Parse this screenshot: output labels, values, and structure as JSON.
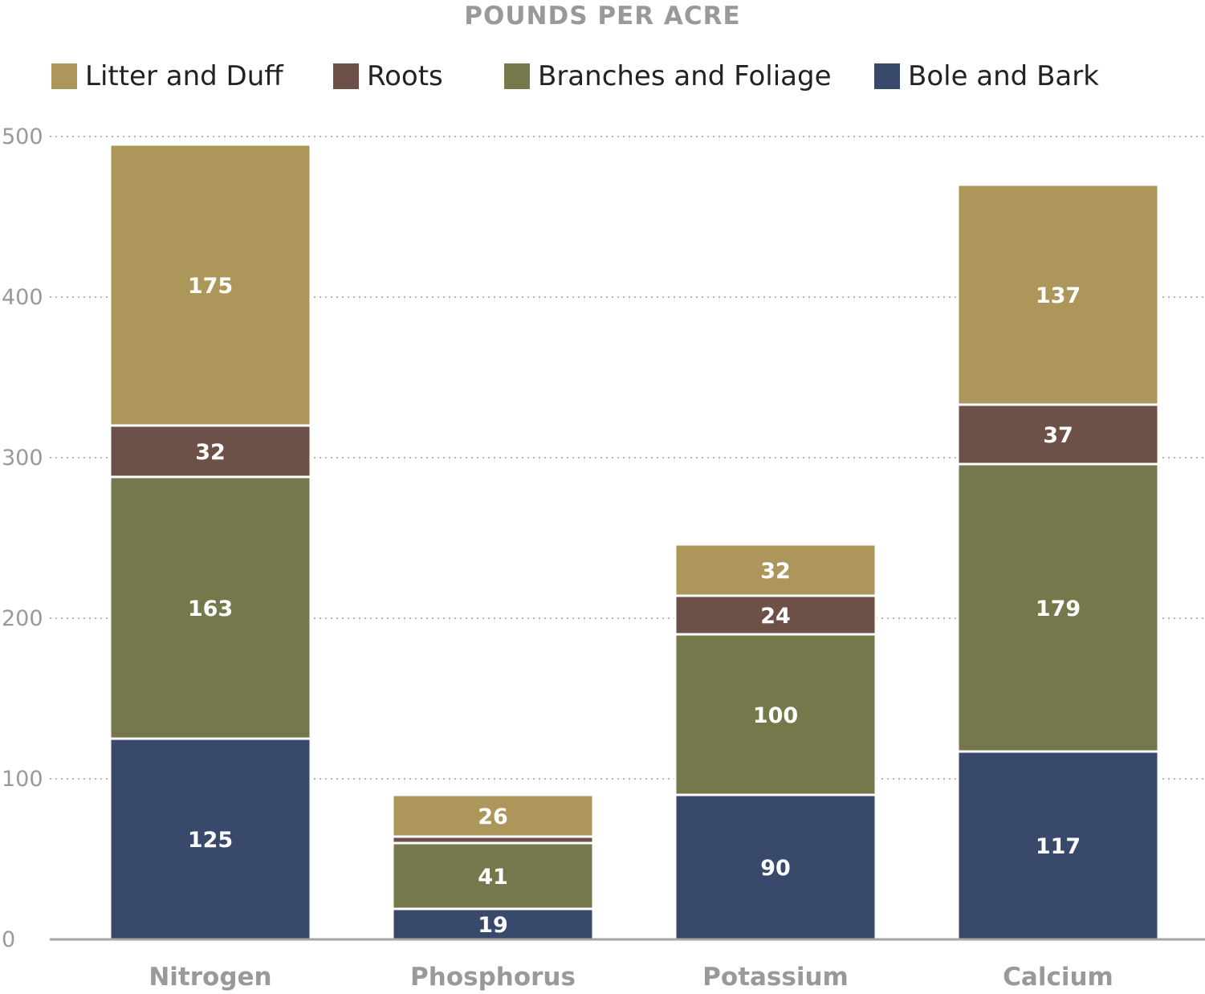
{
  "chart_data": {
    "type": "bar",
    "stacked": true,
    "title": "POUNDS PER ACRE",
    "xlabel": "",
    "ylabel": "",
    "ylim": [
      0,
      500
    ],
    "yticks": [
      0,
      100,
      200,
      300,
      400,
      500
    ],
    "grid": true,
    "legend_position": "top",
    "categories": [
      "Nitrogen",
      "Phosphorus",
      "Potassium",
      "Calcium"
    ],
    "series": [
      {
        "name": "Bole and Bark",
        "color": "#38496b",
        "values": [
          125,
          19,
          90,
          117
        ],
        "labels": [
          "125",
          "19",
          "90",
          "117"
        ]
      },
      {
        "name": "Branches and Foliage",
        "color": "#74784a",
        "values": [
          163,
          41,
          100,
          179
        ],
        "labels": [
          "163",
          "41",
          "100",
          "179"
        ]
      },
      {
        "name": "Roots",
        "color": "#6d5048",
        "values": [
          32,
          4,
          24,
          37
        ],
        "labels": [
          "32",
          "",
          "24",
          "37"
        ]
      },
      {
        "name": "Litter and Duff",
        "color": "#ad9659",
        "values": [
          175,
          26,
          32,
          137
        ],
        "labels": [
          "175",
          "26",
          "32",
          "137"
        ]
      }
    ],
    "legend_order": [
      "Litter and Duff",
      "Roots",
      "Branches and Foliage",
      "Bole and Bark"
    ]
  }
}
